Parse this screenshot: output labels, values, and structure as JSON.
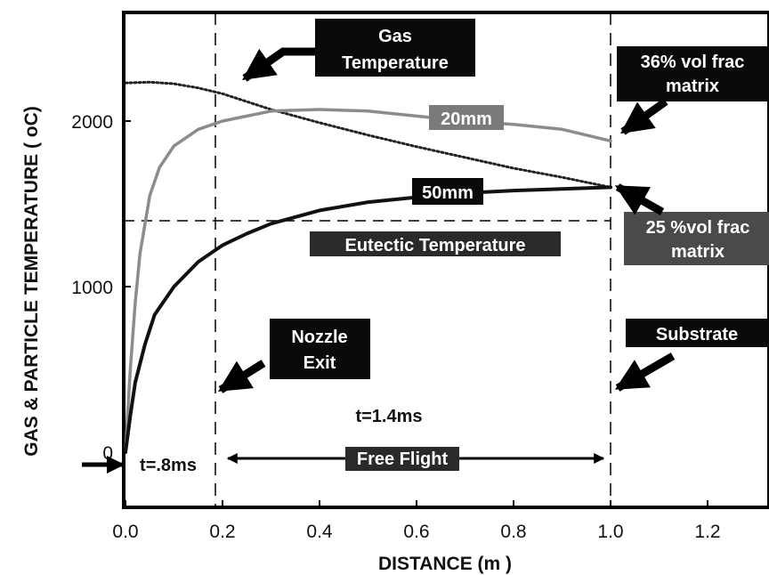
{
  "chart_data": {
    "type": "line",
    "xlabel": "DISTANCE (m )",
    "ylabel": "GAS & PARTICLE TEMPERATURE ( oC)",
    "xlim": [
      0.0,
      1.3
    ],
    "ylim": [
      -320,
      2600
    ],
    "x_ticks": [
      "0.0",
      "0.2",
      "0.4",
      "0.6",
      "0.8",
      "1.0",
      "1.2"
    ],
    "y_ticks": [
      "0",
      "1000",
      "2000"
    ],
    "grid": false,
    "series": [
      {
        "name": "Gas Temperature",
        "style": "dotted",
        "color": "#222222",
        "x": [
          0.0,
          0.05,
          0.1,
          0.15,
          0.2,
          0.3,
          0.4,
          0.5,
          0.6,
          0.7,
          0.8,
          0.9,
          1.0
        ],
        "y": [
          2230,
          2235,
          2225,
          2200,
          2165,
          2070,
          1990,
          1915,
          1845,
          1780,
          1715,
          1660,
          1600
        ]
      },
      {
        "name": "20mm",
        "style": "solid",
        "color": "#8c8c8c",
        "x": [
          0.0,
          0.01,
          0.02,
          0.03,
          0.05,
          0.07,
          0.1,
          0.15,
          0.2,
          0.3,
          0.4,
          0.5,
          0.6,
          0.7,
          0.8,
          0.9,
          1.0
        ],
        "y": [
          0,
          500,
          900,
          1200,
          1550,
          1720,
          1850,
          1950,
          2000,
          2060,
          2070,
          2060,
          2030,
          2000,
          1980,
          1950,
          1880
        ]
      },
      {
        "name": "50mm",
        "style": "solid",
        "color": "#111111",
        "x": [
          0.0,
          0.01,
          0.02,
          0.04,
          0.06,
          0.1,
          0.15,
          0.2,
          0.25,
          0.3,
          0.4,
          0.5,
          0.6,
          0.7,
          0.8,
          0.9,
          1.0
        ],
        "y": [
          0,
          220,
          420,
          650,
          830,
          1000,
          1150,
          1250,
          1320,
          1380,
          1460,
          1510,
          1540,
          1565,
          1580,
          1590,
          1600
        ]
      }
    ],
    "reference_lines": [
      {
        "orientation": "horizontal",
        "value": 1380,
        "from": 0.0,
        "to": 1.0,
        "style": "dashed",
        "label": "Eutectic Temperature"
      },
      {
        "orientation": "vertical",
        "value": 0.2,
        "style": "dashed",
        "label": "Nozzle Exit"
      },
      {
        "orientation": "vertical",
        "value": 1.0,
        "style": "dashed",
        "label": "Substrate"
      }
    ],
    "annotations": {
      "gas_temperature": [
        "Gas",
        "Temperature"
      ],
      "label_20mm": "20mm",
      "label_50mm": "50mm",
      "vol_frac_36": [
        "36% vol frac",
        "matrix"
      ],
      "vol_frac_25": [
        "25 %vol frac",
        "matrix"
      ],
      "eutectic": "Eutectic Temperature",
      "nozzle_exit": [
        "Nozzle",
        "Exit"
      ],
      "substrate": "Substrate",
      "time_nozzle": "t=.8ms",
      "time_flight": "t=1.4ms",
      "free_flight": "Free Flight"
    }
  }
}
